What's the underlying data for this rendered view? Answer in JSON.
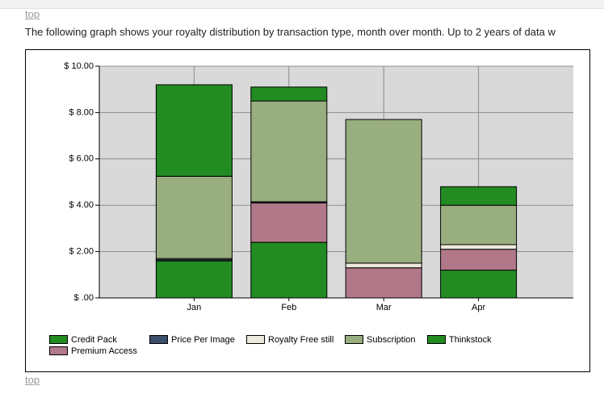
{
  "page": {
    "top_link": "top",
    "intro": "The following graph shows your royalty distribution by transaction type, month over month. Up to 2 years of data w",
    "bottom_link": "top"
  },
  "chart_data": {
    "type": "stacked_bar",
    "categories": [
      "Jan",
      "Feb",
      "Mar",
      "Apr"
    ],
    "series": [
      {
        "name": "Credit Pack",
        "color": "#228b22",
        "values": [
          1.6,
          2.4,
          0,
          1.2
        ]
      },
      {
        "name": "Premium Access",
        "color": "#b07888",
        "values": [
          0,
          1.7,
          1.3,
          0.9
        ]
      },
      {
        "name": "Price Per Image",
        "color": "#3b4e6b",
        "values": [
          0.05,
          0.05,
          0,
          0
        ]
      },
      {
        "name": "Royalty Free still",
        "color": "#ede9dc",
        "values": [
          0.05,
          0,
          0.2,
          0.2
        ]
      },
      {
        "name": "Subscription",
        "color": "#98ae7e",
        "values": [
          3.55,
          4.35,
          6.2,
          1.7
        ]
      },
      {
        "name": "Thinkstock",
        "color": "#228b22",
        "values": [
          3.95,
          0.6,
          0,
          0.8
        ]
      }
    ],
    "ylim": [
      0,
      10
    ],
    "yticks": [
      {
        "value": 0,
        "label": "$ .00"
      },
      {
        "value": 2,
        "label": "$ 2.00"
      },
      {
        "value": 4,
        "label": "$ 4.00"
      },
      {
        "value": 6,
        "label": "$ 6.00"
      },
      {
        "value": 8,
        "label": "$ 8.00"
      },
      {
        "value": 10,
        "label": "$ 10.00"
      }
    ],
    "grid": true
  }
}
